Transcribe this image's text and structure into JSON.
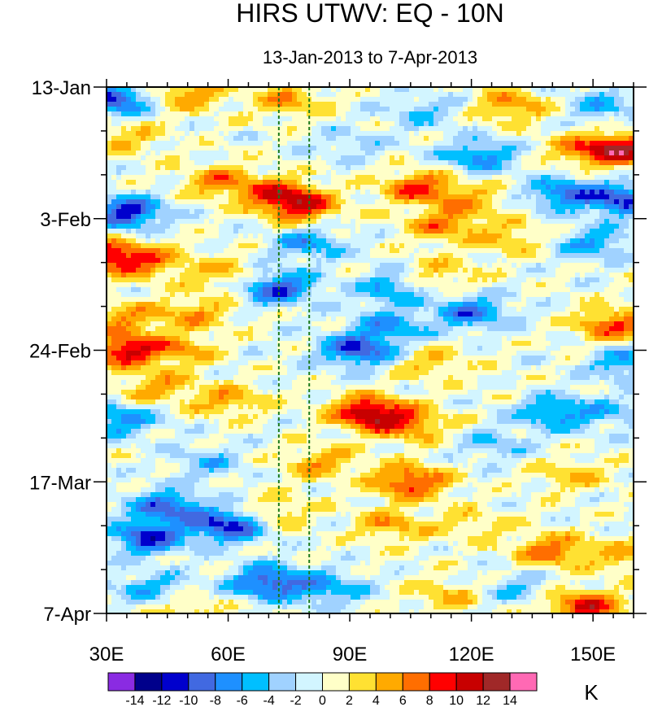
{
  "chart_data": {
    "type": "heatmap",
    "title": "HIRS UTWV: EQ - 10N",
    "subtitle": "13-Jan-2013 to 7-Apr-2013",
    "xlabel": "",
    "ylabel": "",
    "x_range": [
      30,
      160
    ],
    "x_ticks": [
      {
        "value": 30,
        "label": "30E"
      },
      {
        "value": 60,
        "label": "60E"
      },
      {
        "value": 90,
        "label": "90E"
      },
      {
        "value": 120,
        "label": "120E"
      },
      {
        "value": 150,
        "label": "150E"
      }
    ],
    "y_range_days": [
      0,
      84
    ],
    "y_ticks": [
      {
        "day": 0,
        "label": "13-Jan"
      },
      {
        "day": 21,
        "label": "3-Feb"
      },
      {
        "day": 42,
        "label": "24-Feb"
      },
      {
        "day": 63,
        "label": "17-Mar"
      },
      {
        "day": 84,
        "label": "7-Apr"
      }
    ],
    "reference_lines_lon": [
      72.5,
      80
    ],
    "colorbar": {
      "unit": "K",
      "levels": [
        -14,
        -12,
        -10,
        -8,
        -6,
        -4,
        -2,
        0,
        2,
        4,
        6,
        8,
        10,
        12,
        14
      ],
      "labels": [
        "-14",
        "-12",
        "-10",
        "-8",
        "-6",
        "-4",
        "-2",
        "0",
        "2",
        "4",
        "6",
        "8",
        "10",
        "12",
        "14"
      ],
      "colors": [
        "#8a2be2",
        "#00008b",
        "#0000cd",
        "#4169e1",
        "#1e90ff",
        "#00bfff",
        "#a0d2ff",
        "#d2f5ff",
        "#ffffc8",
        "#ffe132",
        "#ffaa00",
        "#ff6e00",
        "#ff0000",
        "#c80000",
        "#a02828",
        "#ff69b4"
      ]
    },
    "anomalies": [
      {
        "lon": 50,
        "day": 1,
        "value": 6
      },
      {
        "lon": 75,
        "day": 2,
        "value": 5
      },
      {
        "lon": 32,
        "day": 2,
        "value": -10
      },
      {
        "lon": 108,
        "day": 4,
        "value": -4
      },
      {
        "lon": 130,
        "day": 3,
        "value": 6
      },
      {
        "lon": 152,
        "day": 3,
        "value": -5
      },
      {
        "lon": 158,
        "day": 10,
        "value": 10
      },
      {
        "lon": 148,
        "day": 10,
        "value": 6
      },
      {
        "lon": 35,
        "day": 8,
        "value": 4
      },
      {
        "lon": 90,
        "day": 9,
        "value": -3
      },
      {
        "lon": 122,
        "day": 11,
        "value": -7
      },
      {
        "lon": 58,
        "day": 15,
        "value": 6
      },
      {
        "lon": 72,
        "day": 17,
        "value": 7
      },
      {
        "lon": 78,
        "day": 19,
        "value": 9
      },
      {
        "lon": 107,
        "day": 16,
        "value": 8
      },
      {
        "lon": 120,
        "day": 18,
        "value": 4
      },
      {
        "lon": 158,
        "day": 18,
        "value": -10
      },
      {
        "lon": 143,
        "day": 17,
        "value": -8
      },
      {
        "lon": 35,
        "day": 20,
        "value": -11
      },
      {
        "lon": 31,
        "day": 27,
        "value": 10
      },
      {
        "lon": 42,
        "day": 28,
        "value": 5
      },
      {
        "lon": 80,
        "day": 25,
        "value": -6
      },
      {
        "lon": 113,
        "day": 22,
        "value": 6
      },
      {
        "lon": 130,
        "day": 24,
        "value": 4
      },
      {
        "lon": 150,
        "day": 25,
        "value": -6
      },
      {
        "lon": 72,
        "day": 32,
        "value": -10
      },
      {
        "lon": 60,
        "day": 30,
        "value": 4
      },
      {
        "lon": 112,
        "day": 30,
        "value": 4
      },
      {
        "lon": 100,
        "day": 32,
        "value": -6
      },
      {
        "lon": 35,
        "day": 37,
        "value": 5
      },
      {
        "lon": 52,
        "day": 36,
        "value": 5
      },
      {
        "lon": 120,
        "day": 36,
        "value": -8
      },
      {
        "lon": 100,
        "day": 38,
        "value": -6
      },
      {
        "lon": 155,
        "day": 38,
        "value": 8
      },
      {
        "lon": 34,
        "day": 42,
        "value": 10
      },
      {
        "lon": 48,
        "day": 42,
        "value": 5
      },
      {
        "lon": 92,
        "day": 42,
        "value": -10
      },
      {
        "lon": 110,
        "day": 44,
        "value": 4
      },
      {
        "lon": 158,
        "day": 44,
        "value": -6
      },
      {
        "lon": 95,
        "day": 52,
        "value": 12
      },
      {
        "lon": 105,
        "day": 54,
        "value": 6
      },
      {
        "lon": 60,
        "day": 50,
        "value": 5
      },
      {
        "lon": 42,
        "day": 48,
        "value": 5
      },
      {
        "lon": 33,
        "day": 53,
        "value": -7
      },
      {
        "lon": 140,
        "day": 52,
        "value": -7
      },
      {
        "lon": 155,
        "day": 52,
        "value": -4
      },
      {
        "lon": 83,
        "day": 60,
        "value": 5
      },
      {
        "lon": 105,
        "day": 63,
        "value": 9
      },
      {
        "lon": 125,
        "day": 57,
        "value": -4
      },
      {
        "lon": 145,
        "day": 62,
        "value": 4
      },
      {
        "lon": 55,
        "day": 60,
        "value": -4
      },
      {
        "lon": 45,
        "day": 67,
        "value": -9
      },
      {
        "lon": 60,
        "day": 70,
        "value": -11
      },
      {
        "lon": 40,
        "day": 72,
        "value": -10
      },
      {
        "lon": 72,
        "day": 68,
        "value": 4
      },
      {
        "lon": 100,
        "day": 70,
        "value": 5
      },
      {
        "lon": 120,
        "day": 70,
        "value": 3
      },
      {
        "lon": 140,
        "day": 74,
        "value": 7
      },
      {
        "lon": 158,
        "day": 75,
        "value": 4
      },
      {
        "lon": 70,
        "day": 79,
        "value": -10
      },
      {
        "lon": 85,
        "day": 80,
        "value": -6
      },
      {
        "lon": 40,
        "day": 80,
        "value": -5
      },
      {
        "lon": 50,
        "day": 84,
        "value": 4
      },
      {
        "lon": 148,
        "day": 83,
        "value": 10
      },
      {
        "lon": 115,
        "day": 81,
        "value": 4
      },
      {
        "lon": 130,
        "day": 80,
        "value": -4
      }
    ]
  }
}
